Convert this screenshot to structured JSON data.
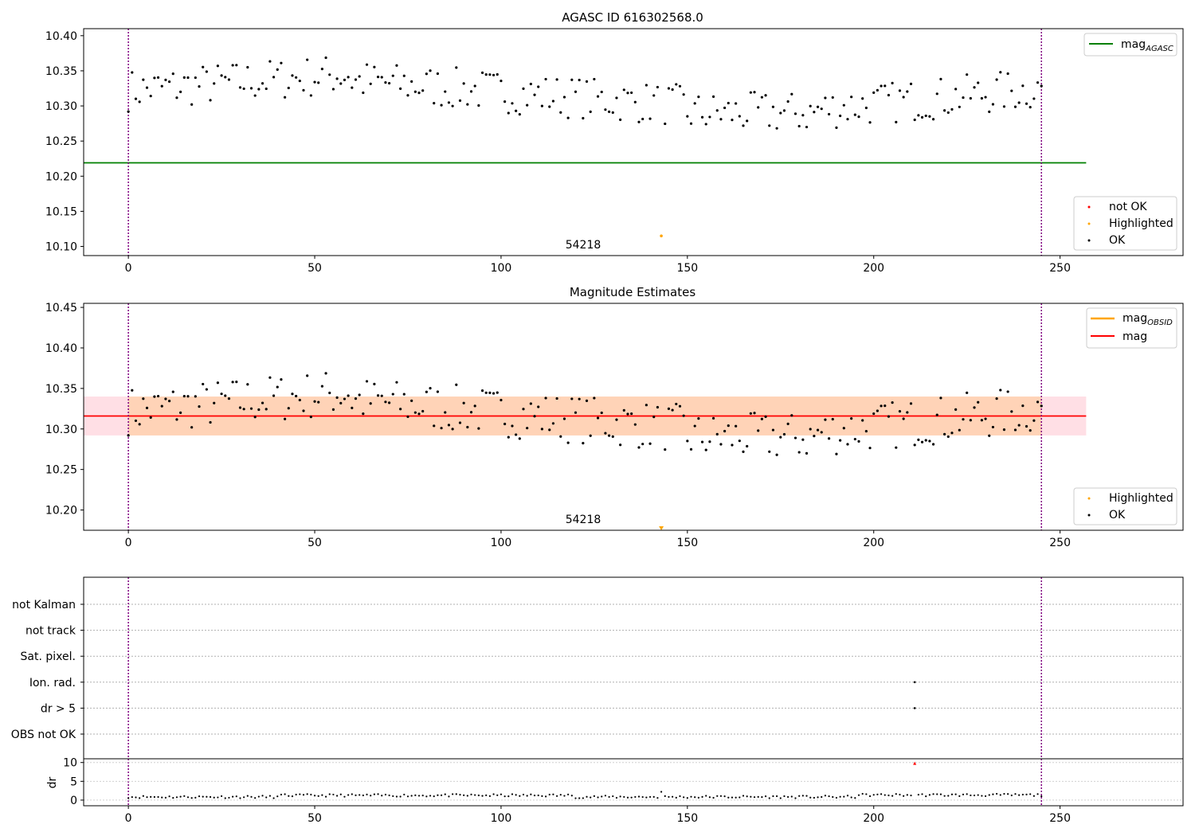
{
  "chart_data": [
    {
      "type": "scatter",
      "title": "AGASC ID 616302568.0",
      "xlim": [
        -12,
        283
      ],
      "ylim": [
        10.087,
        10.41
      ],
      "xticks": [
        0,
        50,
        100,
        150,
        200,
        250
      ],
      "yticks": [
        10.1,
        10.15,
        10.2,
        10.25,
        10.3,
        10.35,
        10.4
      ],
      "ytick_labels": [
        "10.10",
        "10.15",
        "10.20",
        "10.25",
        "10.30",
        "10.35",
        "10.40"
      ],
      "vlines": [
        0,
        245
      ],
      "hline": {
        "y": 10.219,
        "x_range": [
          -12,
          257
        ],
        "color": "#008000"
      },
      "highlighted": [
        {
          "x": 143,
          "y": 10.115
        }
      ],
      "annotation": {
        "text": "54218",
        "x": 123,
        "y": 10.1
      },
      "legend_top": [
        {
          "label": "mag",
          "sub": "AGASC",
          "color": "#008000",
          "kind": "line"
        }
      ],
      "legend_bottom": [
        {
          "label": "not OK",
          "color": "#ff0000"
        },
        {
          "label": "Highlighted",
          "color": "#ffa500"
        },
        {
          "label": "OK",
          "color": "#000000"
        }
      ]
    },
    {
      "type": "scatter",
      "title": "Magnitude Estimates",
      "xlim": [
        -12,
        283
      ],
      "ylim": [
        10.175,
        10.455
      ],
      "xticks": [
        0,
        50,
        100,
        150,
        200,
        250
      ],
      "yticks": [
        10.2,
        10.25,
        10.3,
        10.35,
        10.4,
        10.45
      ],
      "ytick_labels": [
        "10.20",
        "10.25",
        "10.30",
        "10.35",
        "10.40",
        "10.45"
      ],
      "vlines": [
        0,
        245
      ],
      "mag_line": {
        "y": 10.316,
        "x_range": [
          -12,
          257
        ],
        "color": "#ff0000"
      },
      "mag_band": {
        "y_range": [
          10.292,
          10.34
        ],
        "x_range": [
          -12,
          257
        ],
        "color": "#ffc0cb"
      },
      "obsid_band": {
        "y_range": [
          10.292,
          10.34
        ],
        "x_range": [
          0,
          245
        ],
        "color": "#ffa500"
      },
      "highlighted_marker": {
        "x": 143,
        "y": 10.177
      },
      "annotation": {
        "text": "54218",
        "x": 123,
        "y": 10.185
      },
      "legend_top": [
        {
          "label": "mag",
          "sub": "OBSID",
          "color": "#ffa500",
          "kind": "line"
        },
        {
          "label": "mag",
          "sub": "",
          "color": "#ff0000",
          "kind": "line"
        }
      ],
      "legend_bottom": [
        {
          "label": "Highlighted",
          "color": "#ffa500"
        },
        {
          "label": "OK",
          "color": "#000000"
        }
      ]
    },
    {
      "type": "scatter",
      "title": "",
      "xlim": [
        -12,
        283
      ],
      "xticks": [
        0,
        50,
        100,
        150,
        200,
        250
      ],
      "flag_rows": [
        "not Kalman",
        "not track",
        "Sat. pixel.",
        "Ion. rad.",
        "dr > 5",
        "OBS not OK"
      ],
      "flag_points": [
        {
          "row": "Ion. rad.",
          "x": 211
        },
        {
          "row": "dr > 5",
          "x": 211
        }
      ],
      "dr_ylabel": "dr",
      "dr_ylim": [
        -1.5,
        11
      ],
      "dr_yticks": [
        0,
        5,
        10
      ],
      "dr_outlier": {
        "x": 211,
        "y": 9.8
      },
      "vlines": [
        0,
        245
      ]
    }
  ]
}
